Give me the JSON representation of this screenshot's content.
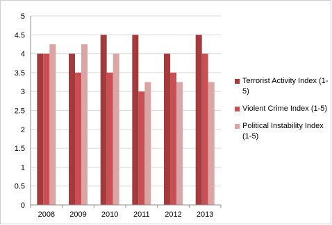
{
  "chart_data": {
    "type": "bar",
    "title": "",
    "xlabel": "",
    "ylabel": "",
    "categories": [
      "2008",
      "2009",
      "2010",
      "2011",
      "2012",
      "2013"
    ],
    "ylim": [
      0,
      5
    ],
    "yticks": [
      "0",
      "0.5",
      "1",
      "1.5",
      "2",
      "2.5",
      "3",
      "3.5",
      "4",
      "4.5",
      "5"
    ],
    "grid": true,
    "legend_position": "right",
    "series": [
      {
        "name": "Terrorist Activity Index (1-5)",
        "color": "#a33b3c",
        "values": [
          4,
          4,
          4.5,
          4.5,
          4,
          4.5
        ]
      },
      {
        "name": "Violent Crime Index (1-5)",
        "color": "#c85054",
        "values": [
          4,
          3.5,
          3.5,
          3,
          3.5,
          4
        ]
      },
      {
        "name": "Political Instability Index (1-5)",
        "color": "#dba4a5",
        "values": [
          4.25,
          4.25,
          4,
          3.25,
          3.25,
          3.25
        ]
      }
    ]
  }
}
